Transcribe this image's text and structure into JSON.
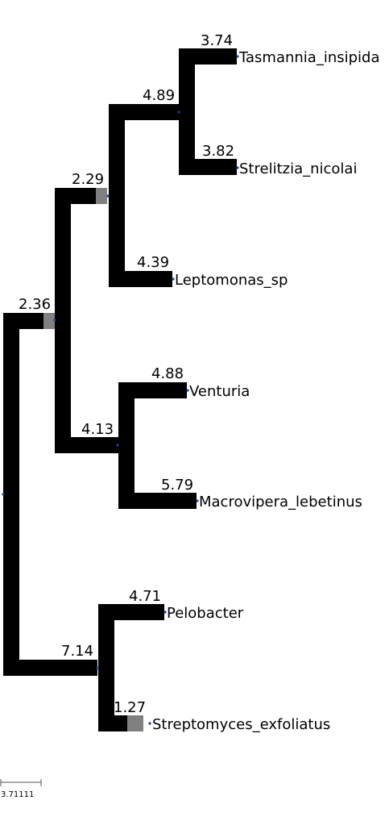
{
  "tree": {
    "colors": {
      "branch": "#000000",
      "support_box": "#808080",
      "node_dot": "#1f3fa0",
      "background": "#ffffff"
    },
    "leaves": [
      {
        "name": "Tasmannia_insipida",
        "branch_length": "3.74"
      },
      {
        "name": "Strelitzia_nicolai",
        "branch_length": "3.82"
      },
      {
        "name": "Leptomonas_sp",
        "branch_length": "4.39"
      },
      {
        "name": "Venturia",
        "branch_length": "4.88"
      },
      {
        "name": "Macrovipera_lebetinus",
        "branch_length": "5.79"
      },
      {
        "name": "Pelobacter",
        "branch_length": "4.71"
      },
      {
        "name": "Streptomyces_exfoliatus",
        "branch_length": "1.27"
      }
    ],
    "internal_nodes": [
      {
        "id": "tasmannia-strelitzia-clade",
        "branch_length": "4.89"
      },
      {
        "id": "with-leptomonas-clade",
        "branch_length": "2.29"
      },
      {
        "id": "venturia-macrovipera-clade",
        "branch_length": "4.13"
      },
      {
        "id": "upper-clade",
        "branch_length": "2.36"
      },
      {
        "id": "pelobacter-streptomyces-clade",
        "branch_length": "7.14"
      }
    ],
    "scale_bar": {
      "label": "3.71111"
    }
  }
}
